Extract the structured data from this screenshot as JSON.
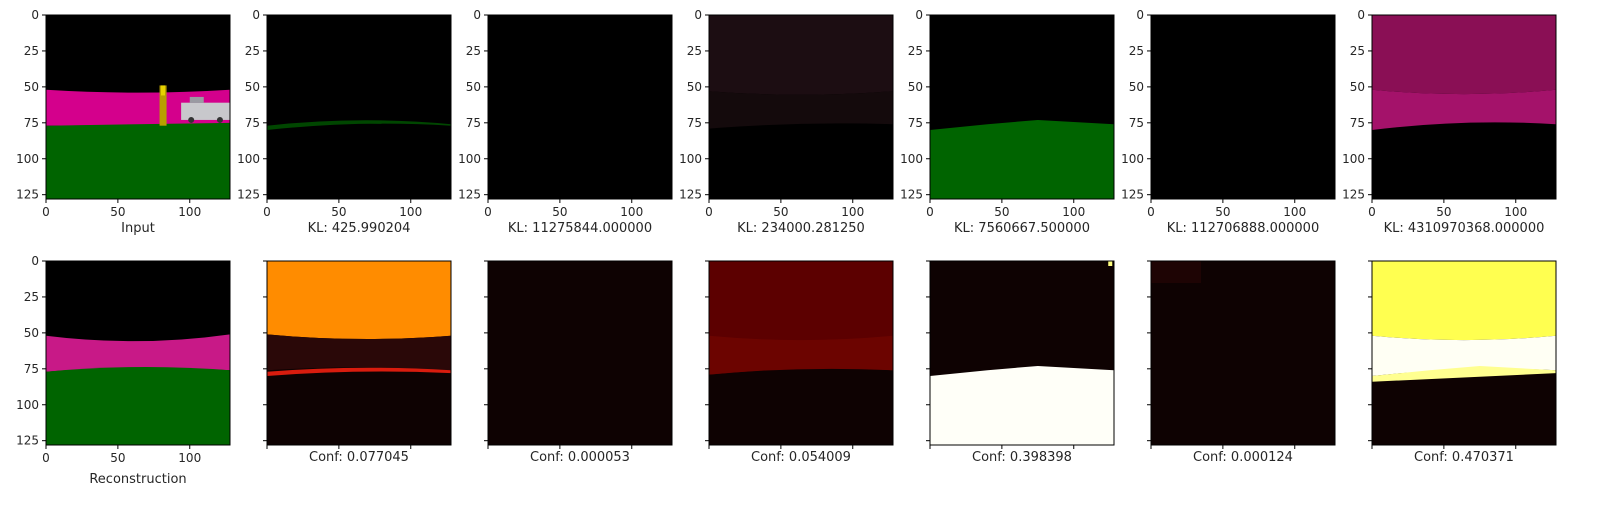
{
  "figure": {
    "top_row_captions": [
      "Input",
      "KL: 425.990204",
      "KL: 11275844.000000",
      "KL: 234000.281250",
      "KL: 7560667.500000",
      "KL: 112706888.000000",
      "KL: 4310970368.000000"
    ],
    "bottom_row_captions": [
      "Reconstruction",
      "Conf: 0.077045",
      "Conf: 0.000053",
      "Conf: 0.054009",
      "Conf: 0.398398",
      "Conf: 0.000124",
      "Conf: 0.470371"
    ]
  },
  "chart_data": {
    "type": "heatmap",
    "grid": "7 columns x 2 rows of image panels",
    "axis_range": {
      "x": [
        0,
        128
      ],
      "y": [
        128,
        0
      ]
    },
    "xticks": [
      "0",
      "50",
      "100"
    ],
    "yticks": [
      "0",
      "25",
      "50",
      "75",
      "100",
      "125"
    ],
    "kl_values": [
      425.990204,
      11275844.0,
      234000.28125,
      7560667.5,
      112706888.0,
      4310970368.0
    ],
    "conf_values": [
      0.077045,
      5.3e-05,
      0.054009,
      0.398398,
      0.000124,
      0.470371
    ],
    "colors": {
      "black": "#000000",
      "magenta": "#d4008c",
      "green": "#006400",
      "orange": "#ff8c00",
      "dark_red": "#5c0000",
      "yellow": "#ffff50",
      "white": "#fffff8"
    }
  }
}
